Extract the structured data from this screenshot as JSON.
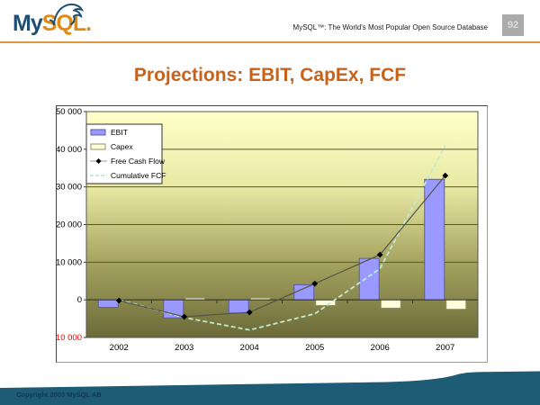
{
  "header": {
    "logo_my": "My",
    "logo_sql": "SQL",
    "logo_dot": ".",
    "tagline": "MySQL™: The World's Most Popular Open Source Database",
    "page_number": "92"
  },
  "slide": {
    "title": "Projections: EBIT, CapEx, FCF"
  },
  "footer": {
    "copyright": "Copyright 2003 MySQL AB"
  },
  "colors": {
    "title": "#C8621A",
    "accent_orange": "#E2953F",
    "swoosh_teal": "#1E5B74",
    "copyright_text": "#0E3A55",
    "page_box_bg": "#ABABAB",
    "logo_navy": "#1E4F72",
    "logo_orange": "#DF8A13"
  },
  "chart_data": {
    "type": "combo-bar-line",
    "categories": [
      "2002",
      "2003",
      "2004",
      "2005",
      "2006",
      "2007"
    ],
    "series": [
      {
        "name": "EBIT",
        "type": "bar",
        "color": "#9999FF",
        "border": "#5C5CA8",
        "values": [
          -2000,
          -4800,
          -3500,
          4000,
          11000,
          32000
        ]
      },
      {
        "name": "Capex",
        "type": "bar",
        "color": "#FFFFDC",
        "border": "#90906A",
        "values": [
          0,
          500,
          500,
          -1500,
          -2200,
          -2500
        ]
      },
      {
        "name": "Free Cash Flow",
        "type": "line",
        "color": "#55554a",
        "marker": "diamond",
        "marker_color": "#000000",
        "values": [
          -200,
          -4500,
          -3300,
          4300,
          12000,
          33000
        ]
      },
      {
        "name": "Cumulative FCF",
        "type": "line",
        "color": "#BDEBD3",
        "dashed": true,
        "values": [
          0,
          -4700,
          -8000,
          -3700,
          8300,
          41000
        ]
      }
    ],
    "ylim": [
      -10000,
      50000
    ],
    "ytick_step": 10000,
    "ytick_labels": [
      "50 000",
      "40 000",
      "30 000",
      "20 000",
      "10 000",
      "0",
      "-10 000"
    ],
    "negative_label_color": "#FF0000",
    "axis_label_color": "#000000",
    "grid": true,
    "legend_position": "top-left",
    "plot_gradient": [
      "#FFFFC9",
      "#E9E9A4",
      "#A5A35F",
      "#6C6B39"
    ]
  }
}
